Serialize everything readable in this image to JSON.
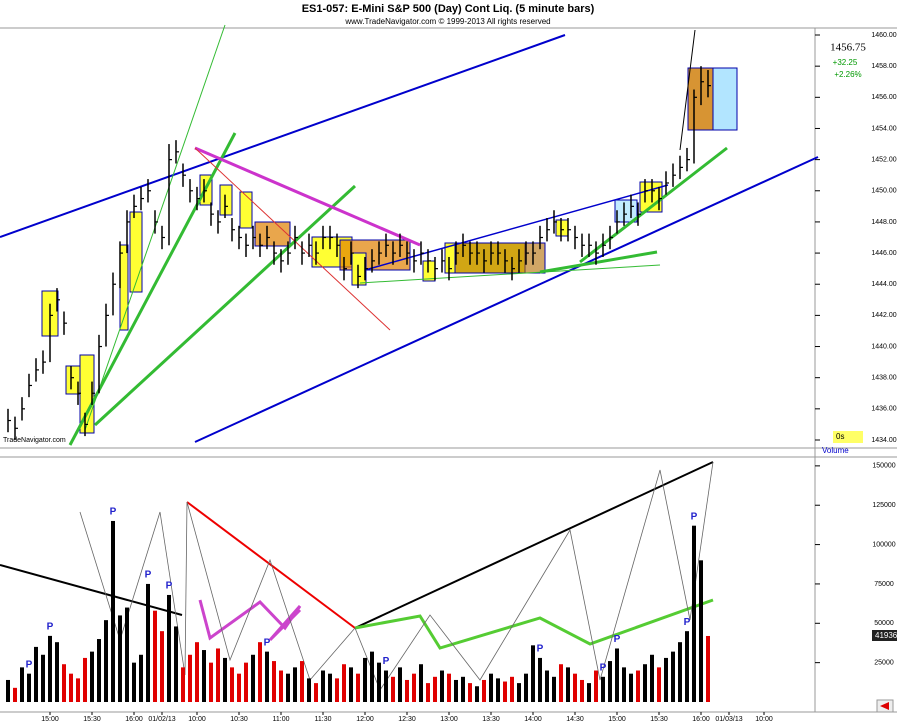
{
  "title": "ES1-057:  E-Mini S&P 500 (Day) Cont Liq.  (5 minute bars)",
  "subtitle": "www.TradeNavigator.com © 1999-2013 All rights reserved",
  "watermark": "TradeNavigator.com",
  "last_price": "1456.75",
  "change": "+32.25",
  "change_pct": "+2.26%",
  "timer": "0s",
  "pivot_label": "P",
  "xticks": [
    {
      "value": 6,
      "label": "15:00"
    },
    {
      "value": 12,
      "label": "15:30"
    },
    {
      "value": 18,
      "label": "16:00"
    },
    {
      "value": 22,
      "label": "01/02/13"
    },
    {
      "value": 27,
      "label": "10:00"
    },
    {
      "value": 33,
      "label": "10:30"
    },
    {
      "value": 39,
      "label": "11:00"
    },
    {
      "value": 45,
      "label": "11:30"
    },
    {
      "value": 51,
      "label": "12:00"
    },
    {
      "value": 57,
      "label": "12:30"
    },
    {
      "value": 63,
      "label": "13:00"
    },
    {
      "value": 69,
      "label": "13:30"
    },
    {
      "value": 75,
      "label": "14:00"
    },
    {
      "value": 81,
      "label": "14:30"
    },
    {
      "value": 87,
      "label": "15:00"
    },
    {
      "value": 93,
      "label": "15:30"
    },
    {
      "value": 99,
      "label": "16:00"
    },
    {
      "value": 103,
      "label": "01/03/13"
    },
    {
      "value": 108,
      "label": "10:00"
    }
  ],
  "xlim": [
    0,
    115
  ],
  "chart_data": [
    {
      "type": "hlc",
      "color": "#000000",
      "ylim": [
        1433.55,
        1460.45
      ],
      "yticks": [
        {
          "value": 1434,
          "label": "1434.00"
        },
        {
          "value": 1436,
          "label": "1436.00"
        },
        {
          "value": 1438,
          "label": "1438.00"
        },
        {
          "value": 1440,
          "label": "1440.00"
        },
        {
          "value": 1442,
          "label": "1442.00"
        },
        {
          "value": 1444,
          "label": "1444.00"
        },
        {
          "value": 1446,
          "label": "1446.00"
        },
        {
          "value": 1448,
          "label": "1448.00"
        },
        {
          "value": 1450,
          "label": "1450.00"
        },
        {
          "value": 1452,
          "label": "1452.00"
        },
        {
          "value": 1454,
          "label": "1454.00"
        },
        {
          "value": 1456,
          "label": "1456.00"
        },
        {
          "value": 1458,
          "label": "1458.00"
        },
        {
          "value": 1460,
          "label": "1460.00"
        }
      ],
      "high": [
        1436,
        1435.5,
        1436.75,
        1438.25,
        1439.25,
        1439.75,
        1442.75,
        1443.75,
        1442.25,
        1438.75,
        1437.75,
        1435.75,
        1437.75,
        1440.75,
        1442.75,
        1444.75,
        1446.75,
        1448.75,
        1449.75,
        1450.25,
        1450.75,
        1448.75,
        1447.75,
        1453,
        1453.25,
        1451.75,
        1450.75,
        1450.25,
        1450.75,
        1449.25,
        1448.75,
        1449.75,
        1448.25,
        1447.75,
        1447.25,
        1447.75,
        1447.25,
        1447.75,
        1446.75,
        1446.25,
        1446.75,
        1447.75,
        1446.75,
        1447.25,
        1446.75,
        1447.75,
        1447.75,
        1447.25,
        1445.75,
        1446.75,
        1445.25,
        1445.75,
        1446.25,
        1446.75,
        1447.25,
        1446.75,
        1447.25,
        1446.75,
        1446.25,
        1446.75,
        1446.25,
        1445.75,
        1446.25,
        1445.75,
        1446.75,
        1447.25,
        1446.75,
        1446.75,
        1446.25,
        1446.75,
        1446.75,
        1446.25,
        1445.75,
        1446.25,
        1446.75,
        1446.75,
        1447.75,
        1448.25,
        1448.75,
        1448.25,
        1448.25,
        1447.75,
        1447.25,
        1447.25,
        1446.75,
        1447.25,
        1447.75,
        1448.75,
        1449.25,
        1449.75,
        1449.25,
        1450.75,
        1450.75,
        1450.25,
        1451.25,
        1451.75,
        1452.25,
        1452.75,
        1456.5,
        1458,
        1457.75
      ],
      "low": [
        1434.5,
        1434,
        1435.25,
        1436.75,
        1437.75,
        1438.25,
        1439,
        1442.25,
        1440.75,
        1437.25,
        1436.25,
        1434.25,
        1436.25,
        1437,
        1440,
        1442,
        1443.75,
        1446,
        1448.25,
        1448.75,
        1449.25,
        1447.25,
        1446.25,
        1446.5,
        1451.75,
        1450.25,
        1449.25,
        1448.75,
        1449.25,
        1447.75,
        1447.25,
        1448.25,
        1446.75,
        1446.25,
        1445.75,
        1446.25,
        1445.75,
        1446.25,
        1445.25,
        1444.75,
        1445.25,
        1446.25,
        1445.25,
        1445.75,
        1445.25,
        1446.25,
        1446.25,
        1445.75,
        1444.25,
        1445.25,
        1443.75,
        1444.25,
        1444.75,
        1445.25,
        1445.75,
        1445.25,
        1445.75,
        1445.25,
        1444.75,
        1445.25,
        1444.75,
        1444.25,
        1444.75,
        1444.25,
        1445.25,
        1445.75,
        1445.25,
        1445.25,
        1444.75,
        1445.25,
        1445.25,
        1444.75,
        1444.25,
        1444.75,
        1445.25,
        1445.25,
        1446.25,
        1446.75,
        1447.25,
        1446.75,
        1446.75,
        1446.25,
        1445.75,
        1445.75,
        1445.25,
        1445.75,
        1446.25,
        1447.25,
        1447.75,
        1448.25,
        1447.75,
        1449.25,
        1449.25,
        1448.75,
        1449.75,
        1450.25,
        1450.75,
        1451.25,
        1451.75,
        1455.5,
        1456
      ],
      "close": [
        1435.25,
        1434.75,
        1436,
        1437.5,
        1438.5,
        1439,
        1442,
        1443,
        1441.5,
        1438,
        1437,
        1435,
        1437,
        1440,
        1442,
        1444,
        1446,
        1448,
        1449,
        1449.5,
        1450,
        1448,
        1447,
        1452,
        1452.5,
        1451,
        1450,
        1449.5,
        1450,
        1448.5,
        1448,
        1449,
        1447.5,
        1447,
        1446.5,
        1447,
        1446.5,
        1447,
        1446,
        1445.5,
        1446,
        1447,
        1446,
        1446.5,
        1446,
        1447,
        1447,
        1446.5,
        1445,
        1446,
        1444.5,
        1445,
        1445.5,
        1446,
        1446.5,
        1446,
        1446.5,
        1446,
        1445.5,
        1446,
        1445.5,
        1445,
        1445.5,
        1445,
        1446,
        1446.5,
        1446,
        1446,
        1445.5,
        1446,
        1446,
        1445.5,
        1445,
        1445.5,
        1446,
        1446,
        1447,
        1447.5,
        1448,
        1447.5,
        1447.5,
        1447,
        1446.5,
        1446.5,
        1446,
        1446.5,
        1447,
        1448,
        1448.5,
        1449,
        1448.5,
        1450,
        1450,
        1449.5,
        1450.5,
        1451,
        1451.5,
        1452,
        1456,
        1457,
        1456.75
      ]
    },
    {
      "type": "bar",
      "title": "Volume",
      "up_color": "#000000",
      "down_color": "#e00000",
      "ylim": [
        0,
        155000
      ],
      "yticks": [
        25000,
        50000,
        75000,
        100000,
        125000,
        150000
      ],
      "values": [
        14000,
        9000,
        22000,
        18000,
        35000,
        30000,
        42000,
        38000,
        24000,
        18000,
        15000,
        28000,
        32000,
        40000,
        52000,
        115000,
        55000,
        60000,
        25000,
        30000,
        75000,
        58000,
        45000,
        68000,
        48000,
        22000,
        30000,
        38000,
        33000,
        25000,
        34000,
        28000,
        22000,
        18000,
        25000,
        30000,
        38000,
        32000,
        26000,
        20000,
        18000,
        22000,
        26000,
        15000,
        12000,
        20000,
        18000,
        15000,
        24000,
        22000,
        18000,
        28000,
        32000,
        25000,
        20000,
        16000,
        22000,
        14000,
        18000,
        24000,
        12000,
        16000,
        20000,
        18000,
        14000,
        16000,
        12000,
        10000,
        14000,
        18000,
        15000,
        13000,
        16000,
        12000,
        18000,
        36000,
        28000,
        20000,
        16000,
        24000,
        22000,
        18000,
        14000,
        12000,
        20000,
        16000,
        26000,
        34000,
        22000,
        18000,
        20000,
        24000,
        30000,
        22000,
        28000,
        32000,
        38000,
        45000,
        112000,
        90000,
        41936
      ],
      "pivots": [
        3,
        6,
        15,
        20,
        23,
        37,
        54,
        76,
        85,
        87,
        97,
        98
      ]
    }
  ]
}
